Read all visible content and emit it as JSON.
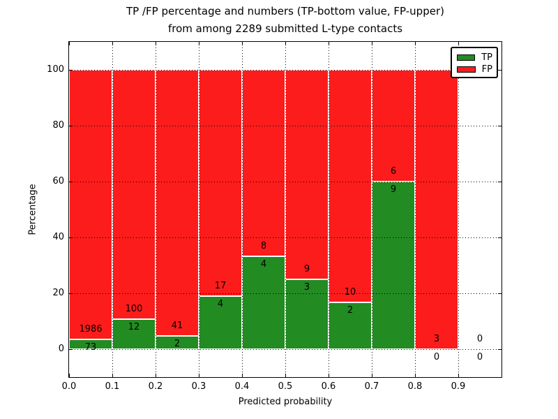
{
  "figure": {
    "title_line1": "TP /FP percentage and numbers (TP-bottom value, FP-upper)",
    "title_line2": "from among 2289 submitted L-type contacts"
  },
  "chart_data": {
    "type": "bar",
    "subtype": "stacked-percentage-histogram",
    "title": "TP /FP percentage and numbers (TP-bottom value, FP-upper) from among 2289 submitted L-type contacts",
    "total_submitted_contacts": 2289,
    "xlabel": "Predicted probability",
    "ylabel": "Percentage",
    "xlim": [
      0.0,
      1.0
    ],
    "ylim": [
      -10,
      110
    ],
    "grid": "dotted, drawn over bars",
    "xticks": [
      {
        "value": 0.0,
        "label": "0.0"
      },
      {
        "value": 0.1,
        "label": "0.1"
      },
      {
        "value": 0.2,
        "label": "0.2"
      },
      {
        "value": 0.3,
        "label": "0.3"
      },
      {
        "value": 0.4,
        "label": "0.4"
      },
      {
        "value": 0.5,
        "label": "0.5"
      },
      {
        "value": 0.6,
        "label": "0.6"
      },
      {
        "value": 0.7,
        "label": "0.7"
      },
      {
        "value": 0.8,
        "label": "0.8"
      },
      {
        "value": 0.9,
        "label": "0.9"
      }
    ],
    "yticks": [
      {
        "value": 0,
        "label": "0"
      },
      {
        "value": 20,
        "label": "20"
      },
      {
        "value": 40,
        "label": "40"
      },
      {
        "value": 60,
        "label": "60"
      },
      {
        "value": 80,
        "label": "80"
      },
      {
        "value": 100,
        "label": "100"
      }
    ],
    "colors": {
      "tp": "#228b22",
      "fp": "#fc1c1c"
    },
    "legend": {
      "position": "upper right",
      "entries": [
        {
          "label": "TP",
          "color": "#228b22"
        },
        {
          "label": "FP",
          "color": "#fc1c1c"
        }
      ]
    },
    "bins": [
      {
        "x_start": 0.0,
        "x_end": 0.1,
        "tp_count": 73,
        "fp_count": 1986,
        "tp_pct": 3.55
      },
      {
        "x_start": 0.1,
        "x_end": 0.2,
        "tp_count": 12,
        "fp_count": 100,
        "tp_pct": 10.71
      },
      {
        "x_start": 0.2,
        "x_end": 0.3,
        "tp_count": 2,
        "fp_count": 41,
        "tp_pct": 4.65
      },
      {
        "x_start": 0.3,
        "x_end": 0.4,
        "tp_count": 4,
        "fp_count": 17,
        "tp_pct": 19.05
      },
      {
        "x_start": 0.4,
        "x_end": 0.5,
        "tp_count": 4,
        "fp_count": 8,
        "tp_pct": 33.33
      },
      {
        "x_start": 0.5,
        "x_end": 0.6,
        "tp_count": 3,
        "fp_count": 9,
        "tp_pct": 25.0
      },
      {
        "x_start": 0.6,
        "x_end": 0.7,
        "tp_count": 2,
        "fp_count": 10,
        "tp_pct": 16.67
      },
      {
        "x_start": 0.7,
        "x_end": 0.8,
        "tp_count": 9,
        "fp_count": 6,
        "tp_pct": 60.0
      },
      {
        "x_start": 0.8,
        "x_end": 0.9,
        "tp_count": 0,
        "fp_count": 3,
        "tp_pct": 0.0
      },
      {
        "x_start": 0.9,
        "x_end": 1.0,
        "tp_count": 0,
        "fp_count": 0,
        "tp_pct": 0.0
      }
    ]
  }
}
